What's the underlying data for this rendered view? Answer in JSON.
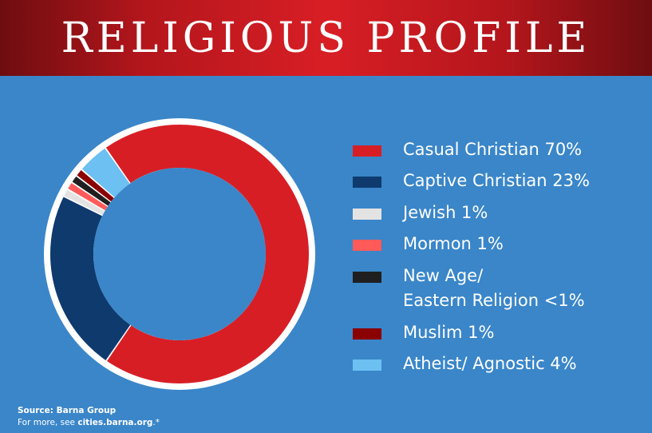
{
  "title": "RELIGIOUS PROFILE",
  "chart_data": {
    "type": "pie",
    "donut": true,
    "title": "RELIGIOUS PROFILE",
    "slices": [
      {
        "name": "Casual Christian",
        "label": "Casual Christian 70%",
        "value": 70,
        "color": "#d81e25"
      },
      {
        "name": "Captive Christian",
        "label": "Captive Christian 23%",
        "value": 23,
        "color": "#0e3a6e"
      },
      {
        "name": "Jewish",
        "label": "Jewish 1%",
        "value": 1,
        "color": "#e3e3e3"
      },
      {
        "name": "Mormon",
        "label": "Mormon 1%",
        "value": 1,
        "color": "#ff5a5a"
      },
      {
        "name": "New Age/ Eastern Religion",
        "label": "New Age/\nEastern Religion <1%",
        "value": 1,
        "color": "#1f1f1f"
      },
      {
        "name": "Muslim",
        "label": "Muslim 1%",
        "value": 1,
        "color": "#8b0000"
      },
      {
        "name": "Atheist/ Agnostic",
        "label": "Atheist/ Agnostic 4%",
        "value": 4,
        "color": "#6cc0f2"
      }
    ],
    "legend_position": "right",
    "ring_color": "#ffffff",
    "background_color": "#3a86c9"
  },
  "source": {
    "line1": "Source: Barna Group",
    "line2_prefix": "For more, see ",
    "url": "cities.barna.org",
    "suffix": ".*"
  }
}
